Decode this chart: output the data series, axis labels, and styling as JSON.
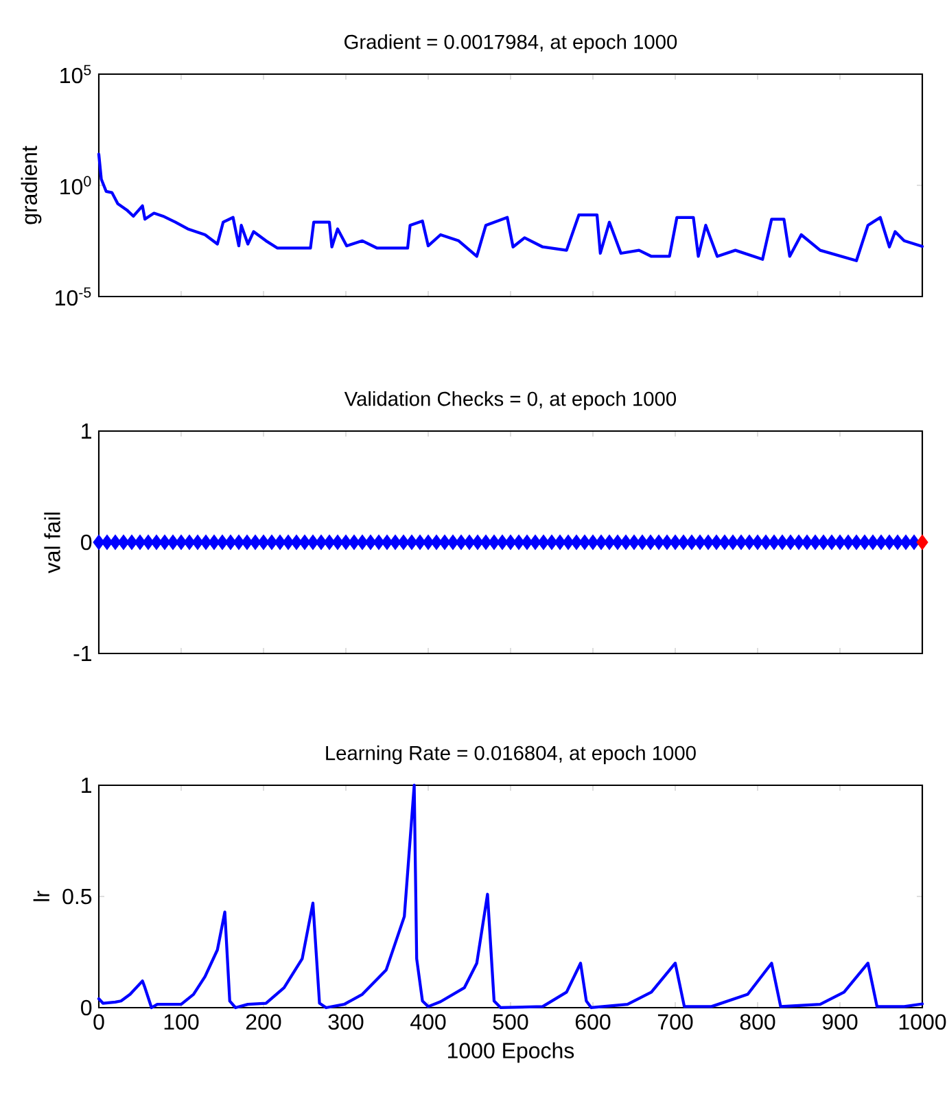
{
  "chart_data": [
    {
      "type": "line",
      "title": "Gradient = 0.0017984, at epoch 1000",
      "ylabel": "gradient",
      "log": "y",
      "tick_labels": "y",
      "xlim": [
        0,
        1000
      ],
      "xticks": [
        0,
        100,
        200,
        300,
        400,
        500,
        600,
        700,
        800,
        900,
        1000
      ],
      "ylim": [
        1e-05,
        100000
      ],
      "yticks": [
        {
          "value": 1e-05,
          "label": "10$^{-5}$"
        },
        {
          "value": 1,
          "label": "10$^{0}$"
        },
        {
          "value": 100000,
          "label": "10$^{5}$"
        }
      ],
      "series": [
        {
          "color": "#0000ff",
          "x": [
            0,
            3,
            9,
            16,
            23,
            34,
            42,
            53,
            56,
            67,
            78,
            93,
            108,
            129,
            144,
            151,
            163,
            170,
            173,
            181,
            188,
            203,
            217,
            257,
            261,
            280,
            283,
            290,
            301,
            320,
            338,
            375,
            378,
            393,
            400,
            415,
            437,
            459,
            470,
            496,
            503,
            517,
            539,
            568,
            583,
            605,
            609,
            620,
            634,
            656,
            671,
            693,
            702,
            722,
            728,
            737,
            751,
            773,
            806,
            817,
            832,
            839,
            853,
            876,
            920,
            934,
            949,
            960,
            967,
            978,
            1000
          ],
          "values": [
            25,
            1.9,
            0.53,
            0.47,
            0.15,
            0.078,
            0.041,
            0.12,
            0.03,
            0.056,
            0.041,
            0.022,
            0.011,
            0.006,
            0.0023,
            0.022,
            0.036,
            0.0019,
            0.016,
            0.0023,
            0.0083,
            0.0032,
            0.0015,
            0.0015,
            0.022,
            0.022,
            0.0017,
            0.011,
            0.0019,
            0.0032,
            0.0015,
            0.0015,
            0.016,
            0.025,
            0.0019,
            0.006,
            0.0032,
            0.00064,
            0.016,
            0.036,
            0.0017,
            0.0044,
            0.0017,
            0.0012,
            0.047,
            0.047,
            0.00088,
            0.022,
            0.00088,
            0.0012,
            0.00064,
            0.00064,
            0.036,
            0.036,
            0.00064,
            0.016,
            0.00064,
            0.0012,
            0.00047,
            0.03,
            0.03,
            0.00064,
            0.006,
            0.0012,
            0.00041,
            0.016,
            0.036,
            0.0017,
            0.0083,
            0.0032,
            0.0018
          ]
        }
      ]
    },
    {
      "type": "scatter",
      "title": "Validation Checks = 0, at epoch 1000",
      "ylabel": "val fail",
      "tick_labels": "y",
      "marker": "diamond",
      "xlim": [
        0,
        1000
      ],
      "xticks": [
        0,
        100,
        200,
        300,
        400,
        500,
        600,
        700,
        800,
        900,
        1000
      ],
      "ylim": [
        -1,
        1
      ],
      "yticks": [
        -1,
        0,
        1
      ],
      "series": [
        {
          "color": "#0000ff",
          "x": [
            0,
            10,
            20,
            30,
            40,
            50,
            60,
            70,
            80,
            90,
            100,
            110,
            120,
            130,
            140,
            150,
            160,
            170,
            180,
            190,
            200,
            210,
            220,
            230,
            240,
            250,
            260,
            270,
            280,
            290,
            300,
            310,
            320,
            330,
            340,
            350,
            360,
            370,
            380,
            390,
            400,
            410,
            420,
            430,
            440,
            450,
            460,
            470,
            480,
            490,
            500,
            510,
            520,
            530,
            540,
            550,
            560,
            570,
            580,
            590,
            600,
            610,
            620,
            630,
            640,
            650,
            660,
            670,
            680,
            690,
            700,
            710,
            720,
            730,
            740,
            750,
            760,
            770,
            780,
            790,
            800,
            810,
            820,
            830,
            840,
            850,
            860,
            870,
            880,
            890,
            900,
            910,
            920,
            930,
            940,
            950,
            960,
            970,
            980,
            990
          ],
          "values": [
            0,
            0,
            0,
            0,
            0,
            0,
            0,
            0,
            0,
            0,
            0,
            0,
            0,
            0,
            0,
            0,
            0,
            0,
            0,
            0,
            0,
            0,
            0,
            0,
            0,
            0,
            0,
            0,
            0,
            0,
            0,
            0,
            0,
            0,
            0,
            0,
            0,
            0,
            0,
            0,
            0,
            0,
            0,
            0,
            0,
            0,
            0,
            0,
            0,
            0,
            0,
            0,
            0,
            0,
            0,
            0,
            0,
            0,
            0,
            0,
            0,
            0,
            0,
            0,
            0,
            0,
            0,
            0,
            0,
            0,
            0,
            0,
            0,
            0,
            0,
            0,
            0,
            0,
            0,
            0,
            0,
            0,
            0,
            0,
            0,
            0,
            0,
            0,
            0,
            0,
            0,
            0,
            0,
            0,
            0,
            0,
            0,
            0,
            0,
            0
          ]
        },
        {
          "color": "#ff0000",
          "x": [
            1000
          ],
          "values": [
            0
          ]
        }
      ]
    },
    {
      "type": "line",
      "title": "Learning Rate = 0.016804, at epoch 1000",
      "ylabel": "lr",
      "xlabel": "1000 Epochs",
      "xlim": [
        0,
        1000
      ],
      "xticks": [
        0,
        100,
        200,
        300,
        400,
        500,
        600,
        700,
        800,
        900,
        1000
      ],
      "ylim": [
        0,
        1
      ],
      "yticks": [
        0,
        0.5,
        1
      ],
      "series": [
        {
          "color": "#0000ff",
          "x": [
            0,
            5,
            20,
            27,
            38,
            53,
            56,
            64,
            71,
            100,
            115,
            129,
            144,
            153,
            159,
            166,
            181,
            203,
            225,
            247,
            260,
            268,
            276,
            298,
            320,
            349,
            371,
            383,
            386,
            393,
            400,
            415,
            444,
            459,
            472,
            480,
            488,
            539,
            568,
            585,
            592,
            598,
            642,
            671,
            700,
            711,
            744,
            788,
            817,
            828,
            876,
            905,
            934,
            945,
            978,
            1000
          ],
          "values": [
            0.04,
            0.02,
            0.025,
            0.03,
            0.06,
            0.12,
            0.09,
            0.0,
            0.015,
            0.015,
            0.06,
            0.14,
            0.26,
            0.43,
            0.03,
            0.0,
            0.015,
            0.02,
            0.09,
            0.22,
            0.47,
            0.02,
            0.0,
            0.015,
            0.06,
            0.17,
            0.41,
            1.0,
            0.22,
            0.03,
            0.005,
            0.027,
            0.09,
            0.2,
            0.51,
            0.03,
            0.0,
            0.005,
            0.07,
            0.2,
            0.03,
            0.0,
            0.015,
            0.07,
            0.2,
            0.005,
            0.005,
            0.06,
            0.2,
            0.005,
            0.015,
            0.07,
            0.2,
            0.005,
            0.005,
            0.017
          ]
        }
      ]
    }
  ]
}
